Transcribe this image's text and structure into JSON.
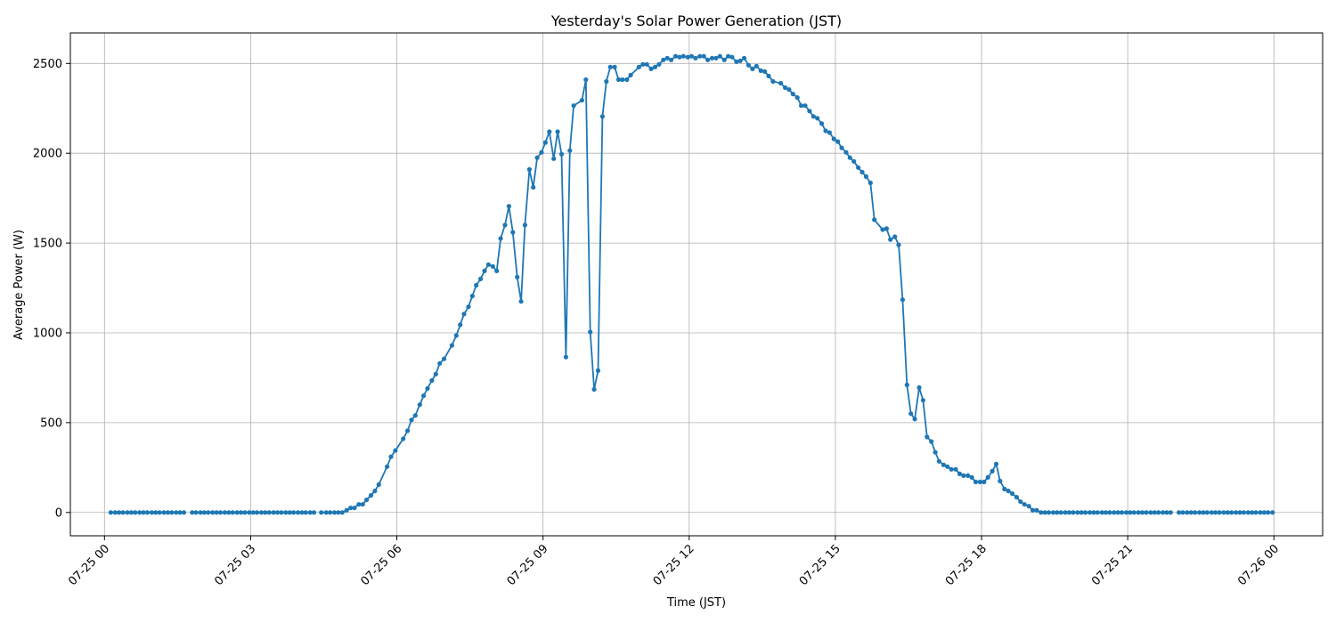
{
  "chart_data": {
    "type": "line",
    "title": "Yesterday's Solar Power Generation (JST)",
    "xlabel": "Time (JST)",
    "ylabel": "Average Power (W)",
    "grid": true,
    "x_unit": "hours since 2024-07-25 00:00 JST",
    "xlim": [
      -0.7,
      25.0
    ],
    "ylim": [
      -130,
      2670
    ],
    "x_ticks": [
      {
        "x": 0,
        "label": "07-25 00"
      },
      {
        "x": 3,
        "label": "07-25 03"
      },
      {
        "x": 6,
        "label": "07-25 06"
      },
      {
        "x": 9,
        "label": "07-25 09"
      },
      {
        "x": 12,
        "label": "07-25 12"
      },
      {
        "x": 15,
        "label": "07-25 15"
      },
      {
        "x": 18,
        "label": "07-25 18"
      },
      {
        "x": 21,
        "label": "07-25 21"
      },
      {
        "x": 24,
        "label": "07-26 00"
      }
    ],
    "y_ticks": [
      0,
      500,
      1000,
      1500,
      2000,
      2500
    ],
    "series": [
      {
        "color": "#1f77b4",
        "points": [
          [
            0.13,
            0
          ],
          [
            0.22,
            0
          ],
          [
            0.3,
            0
          ],
          [
            0.38,
            0
          ],
          [
            0.47,
            0
          ],
          [
            0.55,
            0
          ],
          [
            0.63,
            0
          ],
          [
            0.72,
            0
          ],
          [
            0.8,
            0
          ],
          [
            0.88,
            0
          ],
          [
            0.97,
            0
          ],
          [
            1.05,
            0
          ],
          [
            1.13,
            0
          ],
          [
            1.22,
            0
          ],
          [
            1.3,
            0
          ],
          [
            1.38,
            0
          ],
          [
            1.47,
            0
          ],
          null,
          [
            1.55,
            0
          ],
          [
            1.63,
            0
          ],
          null,
          [
            1.8,
            0
          ],
          [
            1.88,
            0
          ],
          [
            1.97,
            0
          ],
          [
            2.05,
            0
          ],
          [
            2.13,
            0
          ],
          [
            2.22,
            0
          ],
          [
            2.3,
            0
          ],
          [
            2.38,
            0
          ],
          [
            2.47,
            0
          ],
          [
            2.55,
            0
          ],
          [
            2.63,
            0
          ],
          [
            2.72,
            0
          ],
          [
            2.8,
            0
          ],
          [
            2.88,
            0
          ],
          [
            2.97,
            0
          ],
          [
            3.05,
            0
          ],
          [
            3.13,
            0
          ],
          [
            3.22,
            0
          ],
          [
            3.3,
            0
          ],
          [
            3.38,
            0
          ],
          [
            3.47,
            0
          ],
          [
            3.55,
            0
          ],
          [
            3.63,
            0
          ],
          [
            3.72,
            0
          ],
          [
            3.8,
            0
          ],
          [
            3.88,
            0
          ],
          [
            3.97,
            0
          ],
          [
            4.05,
            0
          ],
          [
            4.13,
            0
          ],
          [
            4.22,
            0
          ],
          [
            4.3,
            0
          ],
          null,
          [
            4.45,
            0
          ],
          [
            4.55,
            0
          ],
          [
            4.63,
            0
          ],
          [
            4.72,
            0
          ],
          [
            4.8,
            0
          ],
          [
            4.88,
            0
          ],
          [
            4.97,
            12
          ],
          [
            5.05,
            25
          ],
          [
            5.13,
            25
          ],
          [
            5.22,
            45
          ],
          [
            5.3,
            45
          ],
          [
            5.38,
            70
          ],
          [
            5.47,
            95
          ],
          [
            5.55,
            120
          ],
          [
            5.63,
            155
          ],
          [
            5.8,
            255
          ],
          [
            5.88,
            310
          ],
          [
            5.97,
            345
          ],
          [
            6.13,
            410
          ],
          [
            6.22,
            455
          ],
          [
            6.3,
            515
          ],
          [
            6.38,
            540
          ],
          [
            6.47,
            600
          ],
          [
            6.55,
            650
          ],
          [
            6.63,
            690
          ],
          [
            6.72,
            735
          ],
          [
            6.8,
            770
          ],
          [
            6.88,
            830
          ],
          [
            6.97,
            855
          ],
          [
            7.13,
            930
          ],
          [
            7.22,
            985
          ],
          [
            7.3,
            1045
          ],
          [
            7.38,
            1105
          ],
          [
            7.47,
            1145
          ],
          [
            7.55,
            1205
          ],
          [
            7.63,
            1265
          ],
          [
            7.72,
            1300
          ],
          [
            7.8,
            1345
          ],
          [
            7.88,
            1380
          ],
          [
            7.97,
            1370
          ],
          [
            8.05,
            1345
          ],
          [
            8.13,
            1525
          ],
          [
            8.22,
            1600
          ],
          [
            8.3,
            1705
          ],
          [
            8.38,
            1560
          ],
          [
            8.47,
            1310
          ],
          [
            8.55,
            1175
          ],
          [
            8.63,
            1600
          ],
          [
            8.72,
            1910
          ],
          [
            8.8,
            1810
          ],
          [
            8.88,
            1975
          ],
          [
            8.97,
            2005
          ],
          [
            9.05,
            2060
          ],
          [
            9.13,
            2120
          ],
          [
            9.22,
            1970
          ],
          [
            9.3,
            2120
          ],
          [
            9.38,
            1995
          ],
          [
            9.47,
            865
          ],
          [
            9.55,
            2015
          ],
          [
            9.63,
            2265
          ],
          [
            9.8,
            2295
          ],
          [
            9.88,
            2410
          ],
          [
            9.97,
            1005
          ],
          [
            10.05,
            685
          ],
          [
            10.13,
            790
          ],
          [
            10.22,
            2205
          ],
          [
            10.3,
            2400
          ],
          [
            10.38,
            2480
          ],
          [
            10.47,
            2480
          ],
          [
            10.55,
            2410
          ],
          [
            10.63,
            2410
          ],
          [
            10.72,
            2410
          ],
          [
            10.8,
            2435
          ],
          [
            10.97,
            2480
          ],
          [
            11.05,
            2495
          ],
          [
            11.13,
            2495
          ],
          [
            11.22,
            2470
          ],
          [
            11.3,
            2480
          ],
          [
            11.38,
            2495
          ],
          [
            11.47,
            2520
          ],
          [
            11.55,
            2530
          ],
          [
            11.63,
            2520
          ],
          [
            11.72,
            2540
          ],
          [
            11.8,
            2535
          ],
          [
            11.88,
            2540
          ],
          [
            11.97,
            2535
          ],
          [
            12.05,
            2540
          ],
          [
            12.13,
            2530
          ],
          [
            12.22,
            2540
          ],
          [
            12.3,
            2540
          ],
          [
            12.38,
            2520
          ],
          [
            12.47,
            2530
          ],
          [
            12.55,
            2530
          ],
          [
            12.63,
            2540
          ],
          [
            12.72,
            2520
          ],
          [
            12.8,
            2540
          ],
          [
            12.88,
            2535
          ],
          [
            12.97,
            2510
          ],
          [
            13.05,
            2515
          ],
          [
            13.13,
            2530
          ],
          [
            13.22,
            2490
          ],
          [
            13.3,
            2470
          ],
          [
            13.38,
            2485
          ],
          [
            13.47,
            2460
          ],
          [
            13.55,
            2455
          ],
          [
            13.63,
            2430
          ],
          [
            13.72,
            2400
          ],
          [
            13.88,
            2390
          ],
          [
            13.97,
            2365
          ],
          [
            14.05,
            2355
          ],
          [
            14.13,
            2330
          ],
          [
            14.22,
            2310
          ],
          [
            14.3,
            2265
          ],
          [
            14.38,
            2265
          ],
          [
            14.47,
            2235
          ],
          [
            14.55,
            2205
          ],
          [
            14.63,
            2195
          ],
          [
            14.72,
            2165
          ],
          [
            14.8,
            2125
          ],
          [
            14.88,
            2115
          ],
          [
            14.97,
            2080
          ],
          [
            15.05,
            2065
          ],
          [
            15.13,
            2030
          ],
          [
            15.22,
            2005
          ],
          [
            15.3,
            1975
          ],
          [
            15.38,
            1955
          ],
          [
            15.47,
            1920
          ],
          [
            15.55,
            1895
          ],
          [
            15.63,
            1870
          ],
          [
            15.72,
            1835
          ],
          [
            15.8,
            1630
          ],
          [
            15.97,
            1575
          ],
          [
            16.05,
            1580
          ],
          [
            16.13,
            1520
          ],
          [
            16.22,
            1535
          ],
          [
            16.3,
            1490
          ],
          [
            16.38,
            1185
          ],
          [
            16.47,
            710
          ],
          [
            16.55,
            550
          ],
          [
            16.63,
            520
          ],
          [
            16.72,
            695
          ],
          [
            16.8,
            625
          ],
          [
            16.88,
            420
          ],
          [
            16.97,
            395
          ],
          [
            17.05,
            335
          ],
          [
            17.13,
            285
          ],
          [
            17.22,
            265
          ],
          [
            17.3,
            255
          ],
          [
            17.38,
            240
          ],
          [
            17.47,
            240
          ],
          [
            17.55,
            215
          ],
          [
            17.63,
            205
          ],
          [
            17.72,
            205
          ],
          [
            17.8,
            195
          ],
          [
            17.88,
            170
          ],
          [
            17.97,
            170
          ],
          [
            18.05,
            170
          ],
          [
            18.13,
            195
          ],
          [
            18.22,
            230
          ],
          [
            18.3,
            270
          ],
          [
            18.38,
            175
          ],
          [
            18.47,
            130
          ],
          [
            18.55,
            120
          ],
          [
            18.63,
            105
          ],
          [
            18.72,
            85
          ],
          [
            18.8,
            60
          ],
          [
            18.88,
            45
          ],
          [
            18.97,
            35
          ],
          [
            19.05,
            12
          ],
          [
            19.13,
            12
          ],
          [
            19.22,
            0
          ],
          [
            19.3,
            0
          ],
          [
            19.38,
            0
          ],
          [
            19.47,
            0
          ],
          [
            19.55,
            0
          ],
          [
            19.63,
            0
          ],
          [
            19.72,
            0
          ],
          [
            19.8,
            0
          ],
          [
            19.88,
            0
          ],
          [
            19.97,
            0
          ],
          [
            20.05,
            0
          ],
          [
            20.13,
            0
          ],
          [
            20.22,
            0
          ],
          [
            20.3,
            0
          ],
          [
            20.38,
            0
          ],
          [
            20.47,
            0
          ],
          [
            20.55,
            0
          ],
          [
            20.63,
            0
          ],
          [
            20.72,
            0
          ],
          [
            20.8,
            0
          ],
          [
            20.88,
            0
          ],
          [
            20.97,
            0
          ],
          [
            21.05,
            0
          ],
          [
            21.13,
            0
          ],
          [
            21.22,
            0
          ],
          [
            21.3,
            0
          ],
          [
            21.38,
            0
          ],
          [
            21.47,
            0
          ],
          [
            21.55,
            0
          ],
          [
            21.63,
            0
          ],
          [
            21.72,
            0
          ],
          [
            21.8,
            0
          ],
          [
            21.88,
            0
          ],
          null,
          [
            22.05,
            0
          ],
          [
            22.13,
            0
          ],
          [
            22.22,
            0
          ],
          [
            22.3,
            0
          ],
          [
            22.38,
            0
          ],
          [
            22.47,
            0
          ],
          [
            22.55,
            0
          ],
          [
            22.63,
            0
          ],
          [
            22.72,
            0
          ],
          [
            22.8,
            0
          ],
          [
            22.88,
            0
          ],
          [
            22.97,
            0
          ],
          [
            23.05,
            0
          ],
          [
            23.13,
            0
          ],
          [
            23.22,
            0
          ],
          [
            23.3,
            0
          ],
          [
            23.38,
            0
          ],
          [
            23.47,
            0
          ],
          [
            23.55,
            0
          ],
          [
            23.63,
            0
          ],
          [
            23.72,
            0
          ],
          [
            23.8,
            0
          ],
          [
            23.88,
            0
          ],
          [
            23.97,
            0
          ]
        ]
      }
    ]
  }
}
